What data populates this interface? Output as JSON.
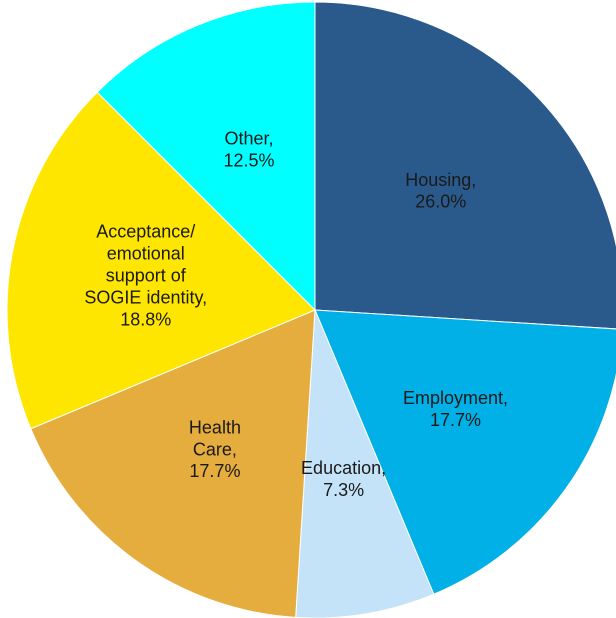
{
  "chart_data": {
    "type": "pie",
    "categories": [
      "Housing,",
      "Employment,",
      "Education,",
      "Health\nCare,",
      "Acceptance/\nemotional\nsupport of\nSOGIE identity,",
      "Other,"
    ],
    "values": [
      26.0,
      17.7,
      7.3,
      17.7,
      18.8,
      12.5
    ],
    "value_labels": [
      "26.0%",
      "17.7%",
      "7.3%",
      "17.7%",
      "18.8%",
      "12.5%"
    ],
    "colors": [
      "#2a5a8c",
      "#00b0e6",
      "#c5e3f8",
      "#e5ac3e",
      "#ffe600",
      "#00ffff"
    ]
  }
}
